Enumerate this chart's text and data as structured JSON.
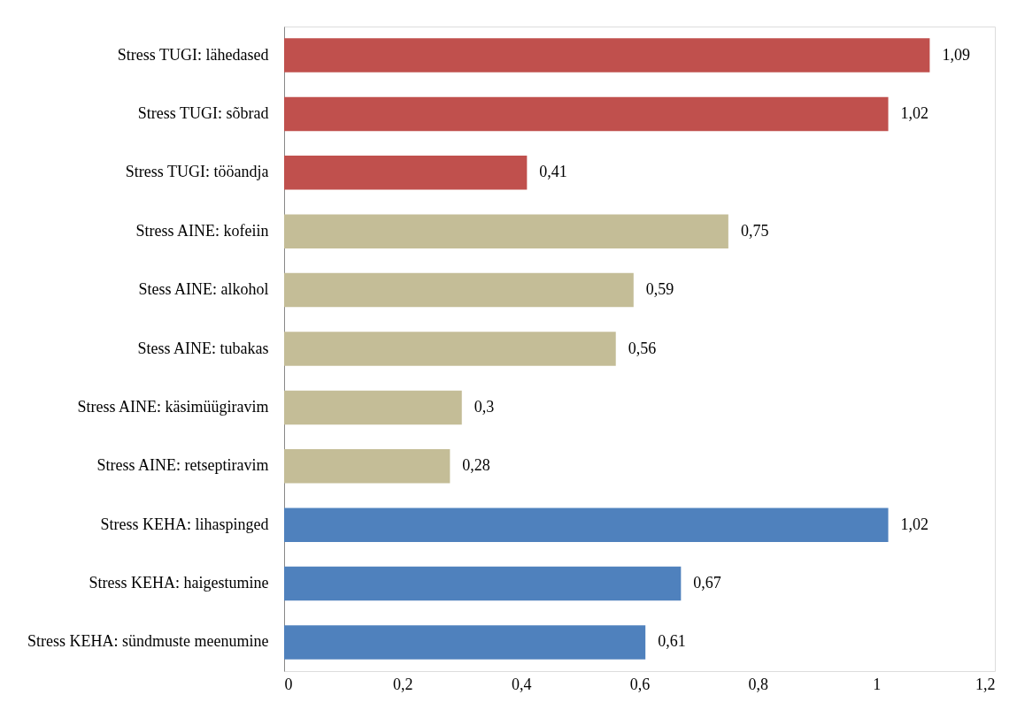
{
  "chart_data": {
    "type": "bar",
    "orientation": "horizontal",
    "categories": [
      "Stress TUGI: lähedased",
      "Stress TUGI: sõbrad",
      "Stress TUGI: tööandja",
      "Stress AINE: kofeiin",
      "Stess AINE: alkohol",
      "Stess AINE: tubakas",
      "Stress AINE: käsimüügiravim",
      "Stress AINE: retseptiravim",
      "Stress KEHA: lihaspinged",
      "Stress KEHA: haigestumine",
      "Stress KEHA: sündmuste meenumine"
    ],
    "values": [
      1.09,
      1.02,
      0.41,
      0.75,
      0.59,
      0.56,
      0.3,
      0.28,
      1.02,
      0.67,
      0.61
    ],
    "colors": [
      "#c0504d",
      "#c0504d",
      "#c0504d",
      "#c4bd97",
      "#c4bd97",
      "#c4bd97",
      "#c4bd97",
      "#c4bd97",
      "#4f81bd",
      "#4f81bd",
      "#4f81bd"
    ],
    "value_labels": [
      "1,09",
      "1,02",
      "0,41",
      "0,75",
      "0,59",
      "0,56",
      "0,3",
      "0,28",
      "1,02",
      "0,67",
      "0,61"
    ],
    "xlim": [
      0,
      1.2
    ],
    "xticks": [
      0,
      {
        "value": 0.2,
        "label": "0,2"
      },
      {
        "value": 0.4,
        "label": "0,4"
      },
      {
        "value": 0.6,
        "label": "0,6"
      },
      {
        "value": 0.8,
        "label": "0,8"
      },
      1,
      {
        "value": 1.2,
        "label": "1,2"
      }
    ],
    "grid": false
  }
}
